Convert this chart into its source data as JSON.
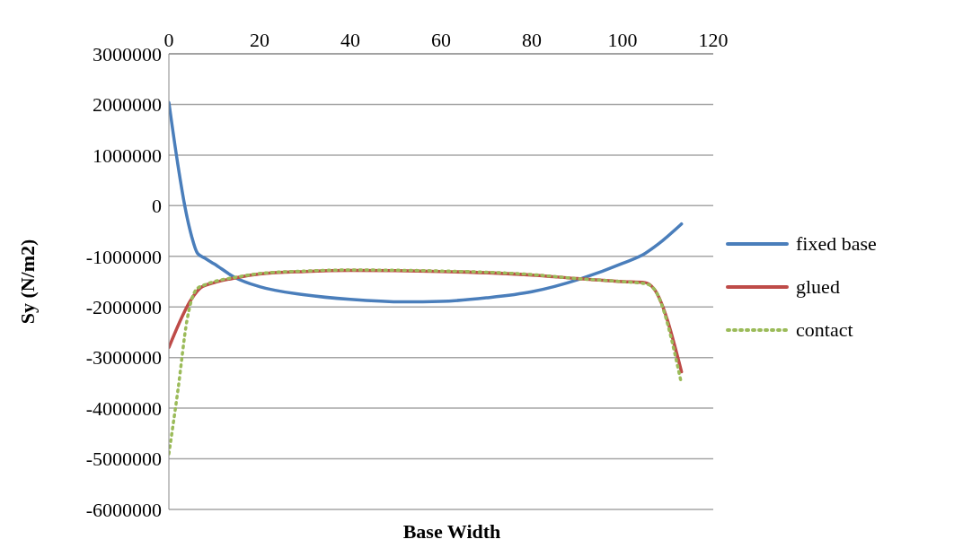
{
  "chart_data": {
    "type": "line",
    "xlabel": "Base Width",
    "ylabel": "Sy (N/m2)",
    "xlim": [
      0,
      120
    ],
    "xticks": [
      0,
      20,
      40,
      60,
      80,
      100,
      120
    ],
    "ylim": [
      -6000000,
      3000000
    ],
    "yticks": [
      -6000000,
      -5000000,
      -4000000,
      -3000000,
      -2000000,
      -1000000,
      0,
      1000000,
      2000000,
      3000000
    ],
    "grid": "y",
    "legend": "right",
    "series": [
      {
        "name": "fixed base",
        "color": "#4a7ebb",
        "line_style": "solid",
        "x": [
          0,
          2,
          3.5,
          5,
          6.3,
          8,
          10,
          14.4,
          20,
          30,
          40,
          52,
          60,
          70,
          80,
          90.9,
          100,
          105,
          108,
          113
        ],
        "values": [
          2040000,
          800000,
          0,
          -600000,
          -940000,
          -1040000,
          -1150000,
          -1410000,
          -1600000,
          -1760000,
          -1850000,
          -1900000,
          -1890000,
          -1820000,
          -1700000,
          -1440000,
          -1140000,
          -940000,
          -750000,
          -360000
        ]
      },
      {
        "name": "glued",
        "color": "#be4b48",
        "line_style": "solid",
        "x": [
          0,
          5,
          7,
          10,
          15,
          20,
          30,
          40,
          60,
          80,
          90,
          100,
          105,
          107,
          113
        ],
        "values": [
          -2800000,
          -1840000,
          -1620000,
          -1520000,
          -1420000,
          -1350000,
          -1300000,
          -1280000,
          -1300000,
          -1370000,
          -1440000,
          -1500000,
          -1520000,
          -1650000,
          -3280000
        ]
      },
      {
        "name": "contact",
        "color": "#9bbb59",
        "line_style": "dotted",
        "x": [
          0,
          2,
          4,
          6,
          8,
          10,
          15,
          20,
          30,
          40,
          60,
          80,
          90,
          100,
          105,
          107,
          113
        ],
        "values": [
          -4900000,
          -3640000,
          -2260000,
          -1660000,
          -1560000,
          -1500000,
          -1410000,
          -1340000,
          -1290000,
          -1270000,
          -1290000,
          -1360000,
          -1440000,
          -1500000,
          -1540000,
          -1650000,
          -3520000
        ]
      }
    ]
  }
}
